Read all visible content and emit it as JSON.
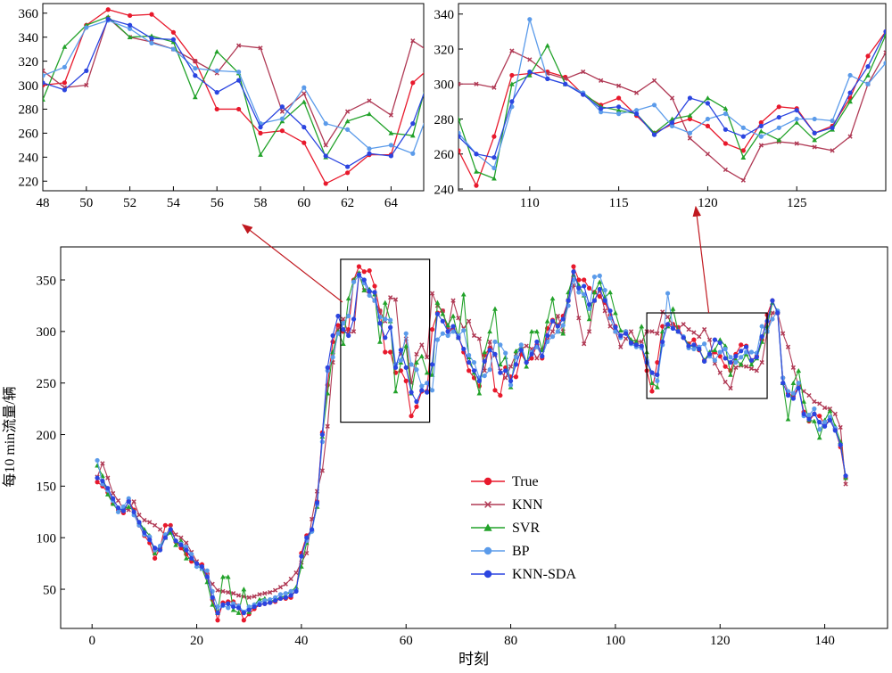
{
  "chart_data": {
    "type": "line",
    "xlabel": "时刻",
    "ylabel": "每10 min流量/辆",
    "legend_placement": "lower-center",
    "grid": false,
    "panels": {
      "main": {
        "xlim": [
          -6,
          152
        ],
        "ylim": [
          12,
          382
        ],
        "xticks": [
          0,
          20,
          40,
          60,
          80,
          100,
          120,
          140
        ],
        "yticks": [
          50,
          100,
          150,
          200,
          250,
          300,
          350
        ]
      },
      "zoom_left": {
        "xlim": [
          48,
          65.5
        ],
        "ylim": [
          212,
          368
        ],
        "xticks": [
          48,
          50,
          52,
          54,
          56,
          58,
          60,
          62,
          64
        ],
        "yticks": [
          220,
          240,
          260,
          280,
          300,
          320,
          340,
          360
        ],
        "source_box": {
          "x": [
            47.5,
            64.5
          ],
          "y": [
            212,
            370
          ]
        }
      },
      "zoom_right": {
        "xlim": [
          106,
          130
        ],
        "ylim": [
          239,
          346
        ],
        "xticks": [
          110,
          115,
          120,
          125
        ],
        "yticks": [
          240,
          260,
          280,
          300,
          320,
          340
        ],
        "source_box": {
          "x": [
            106,
            129
          ],
          "y": [
            235,
            318
          ]
        }
      }
    },
    "series": [
      {
        "name": "True",
        "color": "#e8192c",
        "marker": "circle",
        "values": [
          154,
          150,
          144,
          133,
          127,
          124,
          136,
          127,
          112,
          102,
          95,
          80,
          90,
          112,
          112,
          96,
          90,
          84,
          77,
          75,
          74,
          65,
          40,
          20,
          37,
          38,
          38,
          34,
          20,
          26,
          31,
          35,
          36,
          37,
          38,
          41,
          41,
          42,
          50,
          85,
          102,
          107,
          135,
          202,
          248,
          290,
          306,
          300,
          302,
          350,
          363,
          358,
          359,
          344,
          320,
          280,
          280,
          260,
          262,
          252,
          218,
          227,
          242,
          242,
          302,
          318,
          320,
          300,
          302,
          296,
          280,
          262,
          255,
          247,
          277,
          284,
          243,
          238,
          265,
          256,
          256,
          278,
          270,
          274,
          287,
          274,
          303,
          311,
          306,
          315,
          330,
          363,
          350,
          350,
          342,
          338,
          334,
          328,
          316,
          305,
          295,
          300,
          290,
          288,
          285,
          262,
          242,
          270,
          305,
          306,
          307,
          304,
          294,
          288,
          292,
          282,
          272,
          277,
          280,
          276,
          266,
          262,
          278,
          287,
          286,
          272,
          276,
          292,
          316,
          330,
          318,
          255,
          240,
          237,
          247,
          222,
          213,
          220,
          218,
          210,
          214,
          205,
          188,
          158
        ]
      },
      {
        "name": "KNN",
        "color": "#b03a55",
        "marker": "x",
        "values": [
          159,
          172,
          158,
          143,
          136,
          128,
          127,
          135,
          122,
          117,
          115,
          112,
          108,
          102,
          110,
          103,
          100,
          95,
          86,
          77,
          70,
          62,
          55,
          49,
          48,
          47,
          46,
          44,
          43,
          42,
          43,
          45,
          46,
          47,
          49,
          52,
          55,
          60,
          66,
          76,
          85,
          118,
          145,
          165,
          208,
          270,
          302,
          312,
          298,
          300,
          356,
          340,
          336,
          330,
          320,
          310,
          333,
          331,
          278,
          293,
          250,
          278,
          287,
          275,
          337,
          325,
          320,
          302,
          330,
          313,
          303,
          310,
          296,
          293,
          262,
          290,
          277,
          262,
          255,
          266,
          278,
          283,
          286,
          283,
          274,
          282,
          292,
          300,
          315,
          300,
          330,
          345,
          313,
          288,
          300,
          330,
          340,
          320,
          305,
          300,
          285,
          293,
          300,
          290,
          290,
          300,
          300,
          298,
          319,
          314,
          306,
          303,
          307,
          302,
          299,
          295,
          302,
          292,
          269,
          260,
          251,
          245,
          265,
          267,
          266,
          264,
          262,
          270,
          300,
          318,
          318,
          298,
          285,
          265,
          247,
          242,
          238,
          232,
          230,
          226,
          225,
          220,
          207,
          152
        ]
      },
      {
        "name": "SVR",
        "color": "#22a22a",
        "marker": "triangle",
        "values": [
          170,
          160,
          142,
          133,
          126,
          128,
          130,
          126,
          115,
          108,
          102,
          85,
          90,
          100,
          105,
          93,
          97,
          80,
          80,
          73,
          70,
          57,
          35,
          27,
          62,
          62,
          30,
          27,
          50,
          28,
          35,
          40,
          41,
          38,
          40,
          42,
          44,
          48,
          52,
          72,
          95,
          108,
          130,
          198,
          240,
          280,
          300,
          288,
          332,
          350,
          357,
          340,
          341,
          336,
          290,
          328,
          310,
          242,
          270,
          286,
          240,
          270,
          276,
          260,
          258,
          328,
          317,
          306,
          315,
          294,
          336,
          275,
          260,
          240,
          280,
          300,
          322,
          268,
          275,
          246,
          281,
          285,
          266,
          300,
          300,
          282,
          310,
          332,
          300,
          298,
          338,
          355,
          345,
          335,
          312,
          338,
          348,
          333,
          338,
          318,
          301,
          300,
          292,
          290,
          305,
          280,
          250,
          246,
          300,
          305,
          322,
          300,
          295,
          287,
          285,
          283,
          272,
          280,
          282,
          292,
          286,
          258,
          273,
          268,
          278,
          268,
          274,
          290,
          305,
          328,
          320,
          250,
          215,
          250,
          262,
          232,
          214,
          213,
          197,
          214,
          223,
          208,
          193,
          158
        ]
      },
      {
        "name": "BP",
        "color": "#5b9bea",
        "marker": "circle",
        "values": [
          175,
          152,
          146,
          136,
          125,
          130,
          138,
          122,
          112,
          103,
          101,
          88,
          92,
          103,
          108,
          97,
          94,
          91,
          84,
          72,
          70,
          68,
          48,
          33,
          34,
          32,
          36,
          34,
          28,
          33,
          35,
          37,
          39,
          40,
          42,
          45,
          46,
          48,
          49,
          82,
          97,
          106,
          132,
          193,
          262,
          275,
          298,
          308,
          315,
          348,
          354,
          347,
          335,
          330,
          314,
          312,
          311,
          268,
          272,
          298,
          268,
          263,
          247,
          250,
          243,
          292,
          298,
          296,
          300,
          296,
          301,
          277,
          270,
          255,
          257,
          263,
          290,
          287,
          279,
          248,
          275,
          287,
          270,
          280,
          285,
          276,
          290,
          295,
          300,
          306,
          325,
          350,
          338,
          336,
          322,
          353,
          354,
          340,
          313,
          300,
          294,
          300,
          288,
          285,
          284,
          272,
          260,
          252,
          287,
          337,
          303,
          300,
          295,
          284,
          283,
          285,
          288,
          276,
          272,
          280,
          283,
          275,
          270,
          275,
          280,
          280,
          279,
          305,
          300,
          312,
          320,
          255,
          242,
          240,
          250,
          218,
          219,
          225,
          205,
          212,
          217,
          206,
          190,
          160
        ]
      },
      {
        "name": "KNN-SDA",
        "color": "#2b45e0",
        "marker": "circle",
        "values": [
          158,
          155,
          148,
          138,
          129,
          126,
          135,
          125,
          115,
          105,
          98,
          90,
          88,
          100,
          108,
          97,
          93,
          88,
          80,
          75,
          72,
          62,
          42,
          27,
          35,
          36,
          33,
          32,
          27,
          30,
          33,
          35,
          36,
          37,
          39,
          41,
          42,
          44,
          48,
          82,
          100,
          108,
          134,
          200,
          265,
          296,
          315,
          302,
          296,
          312,
          355,
          350,
          339,
          338,
          308,
          294,
          304,
          265,
          282,
          265,
          241,
          232,
          243,
          241,
          268,
          317,
          310,
          300,
          305,
          294,
          283,
          270,
          262,
          252,
          271,
          282,
          278,
          260,
          262,
          252,
          268,
          282,
          270,
          278,
          290,
          276,
          296,
          310,
          305,
          312,
          330,
          358,
          342,
          344,
          326,
          330,
          341,
          330,
          320,
          304,
          296,
          298,
          289,
          287,
          286,
          270,
          260,
          258,
          290,
          307,
          303,
          300,
          294,
          286,
          287,
          283,
          271,
          278,
          292,
          289,
          274,
          270,
          276,
          281,
          285,
          272,
          275,
          295,
          310,
          330,
          318,
          250,
          238,
          235,
          245,
          220,
          215,
          220,
          212,
          208,
          214,
          204,
          190,
          160
        ]
      }
    ]
  }
}
